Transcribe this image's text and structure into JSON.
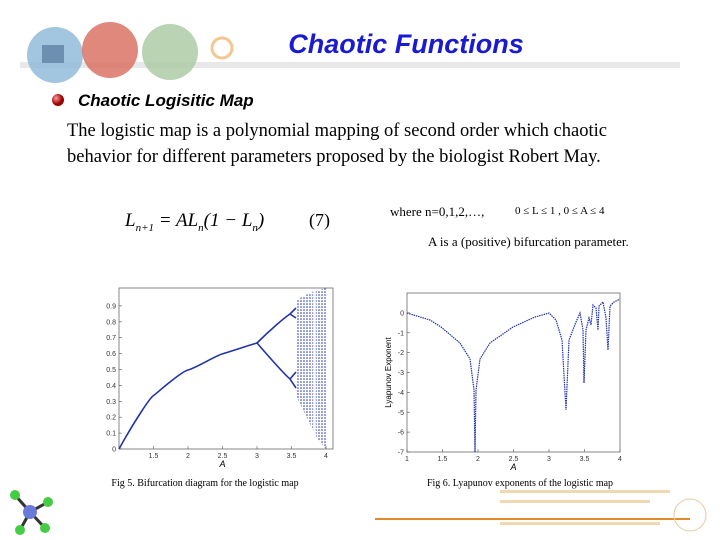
{
  "header": {
    "title": "Chaotic Functions"
  },
  "bullet": "Chaotic Logisitic Map",
  "paragraph": [
    "The logistic map is a polynomial mapping of second order which chaotic",
    "behavior for different parameters proposed by the biologist Robert May."
  ],
  "equation": {
    "parts": [
      "L",
      "n+1",
      " = AL",
      "n",
      "(1 − L",
      "n",
      ")"
    ],
    "number": "(7)",
    "where": "where n=0,1,2,…,",
    "ranges": "0 ≤ L ≤ 1 ,  0 ≤ A ≤ 4",
    "note": "A is a (positive) bifurcation parameter."
  },
  "figures": [
    {
      "caption": "Fig 5. Bifurcation diagram for the logistic map",
      "xlabel": "A",
      "xlim": [
        1,
        4
      ],
      "ylim": [
        0,
        1
      ],
      "xticks": [
        1.5,
        2,
        2.5,
        3,
        3.5,
        4
      ],
      "yticks": [
        0,
        0.1,
        0.2,
        0.3,
        0.4,
        0.5,
        0.6,
        0.7,
        0.8,
        0.9
      ]
    },
    {
      "caption": "Fig 6. Lyapunov exponents of the logistic map",
      "xlabel": "A",
      "ylabel": "Lyapunov Exponent",
      "xlim": [
        1,
        4
      ],
      "ylim": [
        -7,
        1
      ],
      "xticks": [
        1,
        1.5,
        2,
        2.5,
        3,
        3.5,
        4
      ],
      "yticks": [
        0,
        -1,
        -2,
        -3,
        -4,
        -5,
        -6,
        -7
      ]
    }
  ]
}
